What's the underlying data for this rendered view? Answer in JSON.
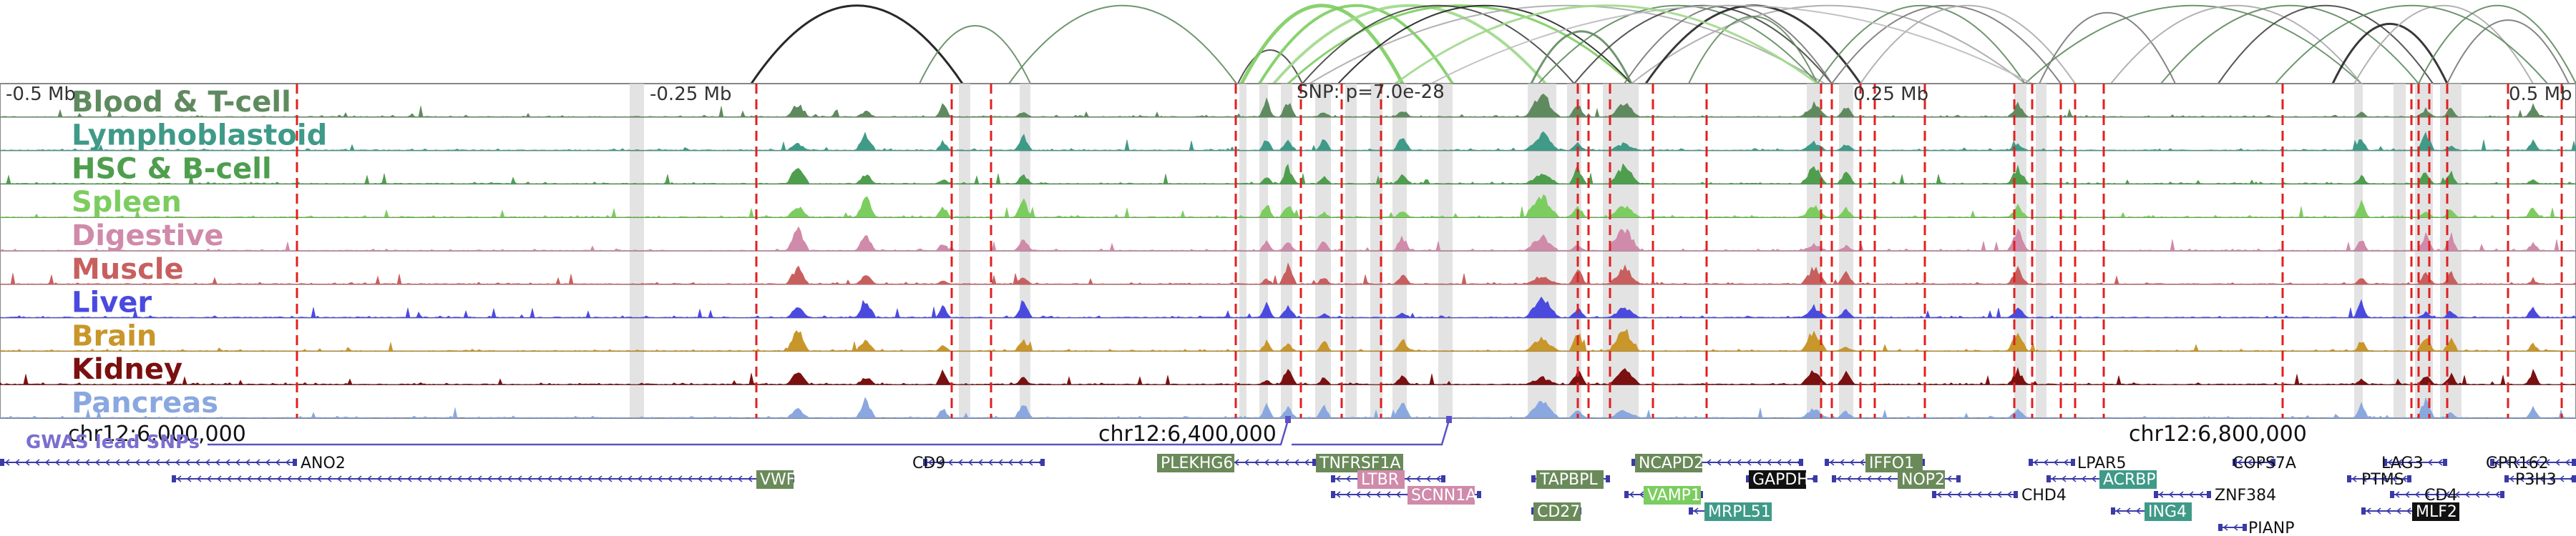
{
  "axis": {
    "ticks": [
      {
        "label": "-0.5 Mb",
        "pos": -0.5
      },
      {
        "label": "-0.25 Mb",
        "pos": -0.25
      },
      {
        "label": "0.25 Mb",
        "pos": 0.25
      },
      {
        "label": "0.5 Mb",
        "pos": 0.5
      }
    ],
    "snp_label": "SNP: p=7.0e-28"
  },
  "chromosome_ticks": [
    {
      "label": "chr12:6,000,000",
      "pos": 6000000
    },
    {
      "label": "chr12:6,400,000",
      "pos": 6400000
    },
    {
      "label": "chr12:6,800,000",
      "pos": 6800000
    }
  ],
  "gwas_label": "GWAS lead SNPs",
  "tracks": [
    {
      "name": "Blood & T-cell",
      "color": "#5f8a5f"
    },
    {
      "name": "Lymphoblastoid",
      "color": "#3f9a88"
    },
    {
      "name": "HSC & B-cell",
      "color": "#4e9e4e"
    },
    {
      "name": "Spleen",
      "color": "#7ccd5f"
    },
    {
      "name": "Digestive",
      "color": "#d08aaa"
    },
    {
      "name": "Muscle",
      "color": "#c85f5f"
    },
    {
      "name": "Liver",
      "color": "#4a4adf"
    },
    {
      "name": "Brain",
      "color": "#c8962a"
    },
    {
      "name": "Kidney",
      "color": "#7a1010"
    },
    {
      "name": "Pancreas",
      "color": "#8aa8df"
    }
  ],
  "genes": [
    {
      "name": "ANO2",
      "style": "plain"
    },
    {
      "name": "VWF",
      "style": "box",
      "color": "#6a8a5a"
    },
    {
      "name": "CD9",
      "style": "plain"
    },
    {
      "name": "PLEKHG6",
      "style": "box",
      "color": "#6a8a5a"
    },
    {
      "name": "TNFRSF1A",
      "style": "box",
      "color": "#6a8a5a"
    },
    {
      "name": "LTBR",
      "style": "box",
      "color": "#d08aaa"
    },
    {
      "name": "SCNN1A",
      "style": "box",
      "color": "#d08aaa"
    },
    {
      "name": "TAPBPL",
      "style": "box",
      "color": "#6a8a5a"
    },
    {
      "name": "CD27",
      "style": "box",
      "color": "#6a8a5a"
    },
    {
      "name": "NCAPD2",
      "style": "box",
      "color": "#6a8a5a"
    },
    {
      "name": "VAMP1",
      "style": "box",
      "color": "#7ccd5f"
    },
    {
      "name": "MRPL51",
      "style": "box",
      "color": "#3f9a88"
    },
    {
      "name": "GAPDH",
      "style": "box",
      "color": "#111111"
    },
    {
      "name": "IFFO1",
      "style": "box",
      "color": "#6a8a5a"
    },
    {
      "name": "NOP2",
      "style": "box",
      "color": "#6a8a5a"
    },
    {
      "name": "CHD4",
      "style": "plain"
    },
    {
      "name": "LPAR5",
      "style": "plain"
    },
    {
      "name": "ACRBP",
      "style": "box",
      "color": "#3f9a88"
    },
    {
      "name": "ING4",
      "style": "box",
      "color": "#3f9a88"
    },
    {
      "name": "ZNF384",
      "style": "plain"
    },
    {
      "name": "PIANP",
      "style": "plain"
    },
    {
      "name": "COPS7A",
      "style": "plain"
    },
    {
      "name": "LAG3",
      "style": "plain"
    },
    {
      "name": "PTMS",
      "style": "plain"
    },
    {
      "name": "CD4",
      "style": "plain"
    },
    {
      "name": "MLF2",
      "style": "box",
      "color": "#111111"
    },
    {
      "name": "GPR162",
      "style": "plain"
    },
    {
      "name": "P3H3",
      "style": "plain"
    }
  ]
}
